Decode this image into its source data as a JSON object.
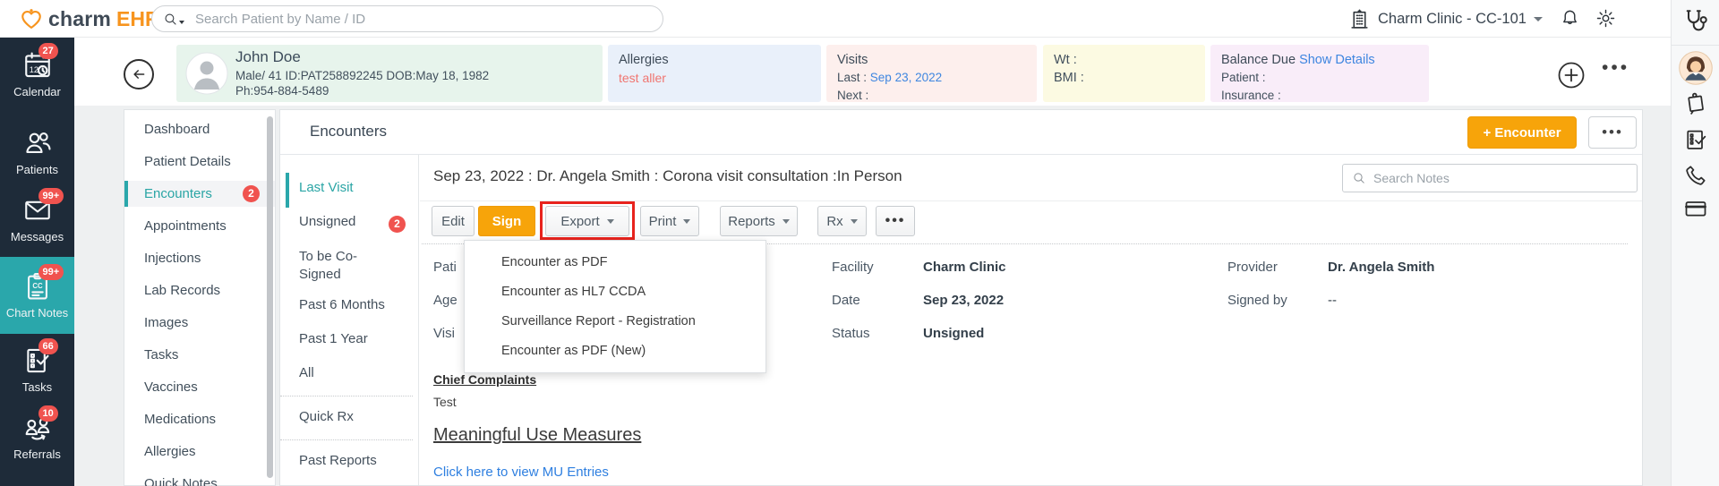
{
  "brand": {
    "prefix": "charm",
    "suffix": "EHR"
  },
  "topbar": {
    "search_placeholder": "Search Patient by Name / ID",
    "clinic_name": "Charm Clinic - CC-101"
  },
  "nav": {
    "items": [
      {
        "label": "Calendar",
        "icon": "calendar-icon",
        "badge": "27",
        "active": false
      },
      {
        "label": "Patients",
        "icon": "patients-icon",
        "badge": "",
        "active": false
      },
      {
        "label": "Messages",
        "icon": "messages-icon",
        "badge": "99+",
        "active": false
      },
      {
        "label": "Chart Notes",
        "icon": "chart-notes-icon",
        "badge": "99+",
        "active": true
      },
      {
        "label": "Tasks",
        "icon": "tasks-icon",
        "badge": "66",
        "active": false
      },
      {
        "label": "Referrals",
        "icon": "referrals-icon",
        "badge": "10",
        "active": false
      }
    ]
  },
  "patient_banner": {
    "name": "John Doe",
    "demographics": "Male/ 41  ID:PAT258892245  DOB:May 18, 1982",
    "phone": "Ph:954-884-5489",
    "allergies": {
      "label": "Allergies",
      "value": "test aller"
    },
    "visits": {
      "label": "Visits",
      "last_label": "Last :",
      "last_value": "Sep 23, 2022",
      "next_label": "Next :"
    },
    "vitals": {
      "wt_label": "Wt :",
      "bmi_label": "BMI :"
    },
    "balance": {
      "label": "Balance Due",
      "show_details": "Show Details",
      "patient_label": "Patient :",
      "insurance_label": "Insurance :"
    }
  },
  "chart_menu": {
    "items": [
      {
        "label": "Dashboard"
      },
      {
        "label": "Patient Details"
      },
      {
        "label": "Encounters",
        "badge": "2",
        "active": true
      },
      {
        "label": "Appointments"
      },
      {
        "label": "Injections"
      },
      {
        "label": "Lab Records"
      },
      {
        "label": "Images"
      },
      {
        "label": "Tasks"
      },
      {
        "label": "Vaccines"
      },
      {
        "label": "Medications"
      },
      {
        "label": "Allergies"
      },
      {
        "label": "Quick Notes"
      }
    ]
  },
  "encounters_panel": {
    "title": "Encounters",
    "add_button": "+ Encounter",
    "more_button": "•••",
    "filters": [
      {
        "label": "Last Visit",
        "active": true
      },
      {
        "label": "Unsigned",
        "badge": "2"
      },
      {
        "label": "To be Co-Signed",
        "wrap": true
      },
      {
        "label": "Past 6 Months"
      },
      {
        "label": "Past 1 Year"
      },
      {
        "label": "All"
      },
      {
        "divider": true
      },
      {
        "label": "Quick Rx"
      },
      {
        "divider": true
      },
      {
        "label": "Past Reports"
      }
    ],
    "encounter": {
      "title": "Sep 23, 2022 : Dr. Angela Smith : Corona visit consultation :In Person",
      "search_placeholder": "Search Notes",
      "actions": {
        "edit": "Edit",
        "sign": "Sign",
        "export": "Export",
        "print": "Print",
        "reports": "Reports",
        "rx": "Rx",
        "more": "•••"
      },
      "export_menu": [
        "Encounter as PDF",
        "Encounter as HL7 CCDA",
        "Surveillance Report - Registration",
        "Encounter as PDF (New)"
      ],
      "details": {
        "col1": [
          {
            "label": "Pati"
          },
          {
            "label": "Age"
          },
          {
            "label": "Visi"
          }
        ],
        "col2": [
          {
            "label": "Facility",
            "value": "Charm Clinic",
            "bold": true
          },
          {
            "label": "Date",
            "value": "Sep 23, 2022",
            "bold": true
          },
          {
            "label": "Status",
            "value": "Unsigned",
            "bold": true
          }
        ],
        "col3": [
          {
            "label": "Provider",
            "value": "Dr. Angela Smith",
            "bold": true
          },
          {
            "label": "Signed by",
            "value": "--",
            "bold": false
          }
        ]
      },
      "sections": {
        "chief_complaints_title": "Chief Complaints",
        "chief_complaints_value": "Test",
        "mu_title": "Meaningful Use Measures",
        "mu_link": "Click here to view MU Entries"
      }
    }
  }
}
